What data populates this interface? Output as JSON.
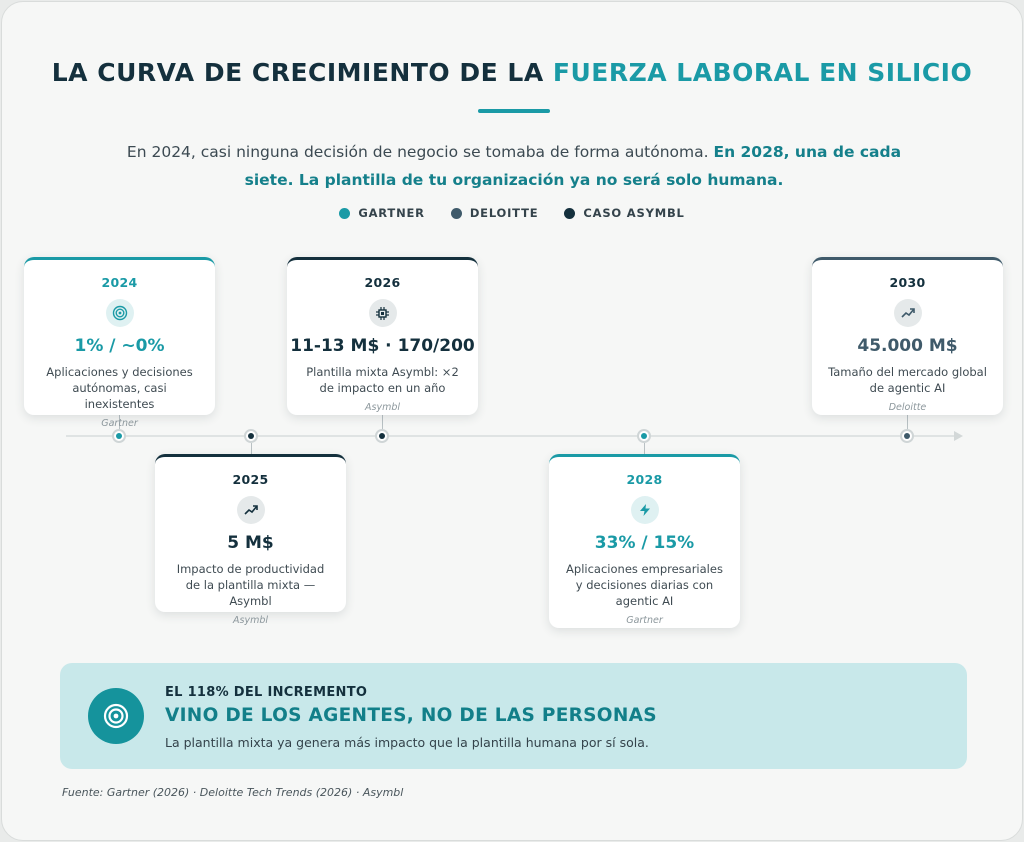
{
  "title": {
    "main": "LA CURVA DE CRECIMIENTO DE LA ",
    "accent": "FUERZA LABORAL EN SILICIO"
  },
  "intro": {
    "plain": "En 2024, casi ninguna decisión de negocio se tomaba de forma autónoma. ",
    "strong": "En 2028, una de cada siete. La plantilla de tu organización ya no será solo humana."
  },
  "legend": [
    {
      "label": "GARTNER",
      "color": "#1a9aa6"
    },
    {
      "label": "DELOITTE",
      "color": "#3f5a6a"
    },
    {
      "label": "CASO ASYMBL",
      "color": "#14303d"
    }
  ],
  "milestones": [
    {
      "year": "2024",
      "value": "1% / ~0%",
      "description": "Aplicaciones y decisiones autónomas, casi inexistentes",
      "source": "Gartner",
      "icon": "target-icon",
      "color": "#1a9aa6"
    },
    {
      "year": "2025",
      "value": "5 M$",
      "description": "Impacto de productividad de la plantilla mixta — Asymbl",
      "source": "Asymbl",
      "icon": "trending-up-icon",
      "color": "#14303d"
    },
    {
      "year": "2026",
      "value": "11-13 M$ · 170/200",
      "description": "Plantilla mixta Asymbl: ×2 de impacto en un año",
      "source": "Asymbl",
      "icon": "chip-icon",
      "color": "#14303d"
    },
    {
      "year": "2028",
      "value": "33% / 15%",
      "description": "Aplicaciones empresariales y decisiones diarias con agentic AI",
      "source": "Gartner",
      "icon": "lightning-icon",
      "color": "#1a9aa6"
    },
    {
      "year": "2030",
      "value": "45.000 M$",
      "description": "Tamaño del mercado global de agentic AI",
      "source": "Deloitte",
      "icon": "trending-up-icon",
      "color": "#3f5a6a"
    }
  ],
  "callout": {
    "kicker": "EL 118% DEL INCREMENTO",
    "headline": "VINO DE LOS AGENTES, NO DE LAS PERSONAS",
    "text": "La plantilla mixta ya genera más impacto que la plantilla humana por sí sola.",
    "icon": "target-icon"
  },
  "source_note": "Fuente: Gartner (2026) · Deloitte Tech Trends (2026) · Asymbl"
}
